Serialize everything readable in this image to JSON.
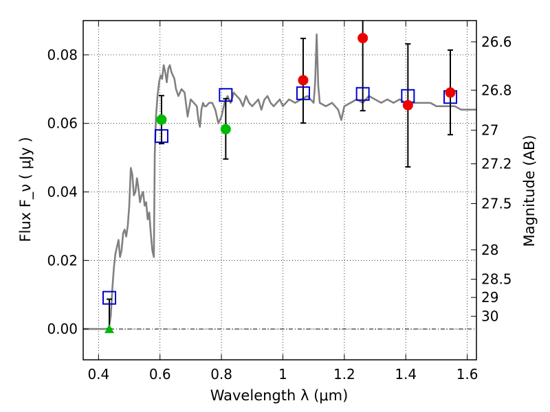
{
  "chart_data": {
    "type": "scatter",
    "title": "",
    "xlabel": "Wavelength  λ (μm)",
    "ylabel": "Flux  F_ν  ( μJy )",
    "y2label": "Magnitude (AB)",
    "xlim": [
      0.35,
      1.63
    ],
    "ylim": [
      -0.009,
      0.09
    ],
    "grid": true,
    "legend": "none",
    "x_ticks": [
      0.4,
      0.6,
      0.8,
      1.0,
      1.2,
      1.4,
      1.6
    ],
    "x_tick_labels": [
      "0.4",
      "0.6",
      "0.8",
      "1",
      "1.2",
      "1.4",
      "1.6"
    ],
    "y_ticks": [
      0.0,
      0.02,
      0.04,
      0.06,
      0.08
    ],
    "y_tick_labels": [
      "0.00",
      "0.02",
      "0.04",
      "0.06",
      "0.08"
    ],
    "mag_ticks": [
      {
        "label": "26.6",
        "flux": 0.0838
      },
      {
        "label": "26.8",
        "flux": 0.0697
      },
      {
        "label": "27",
        "flux": 0.058
      },
      {
        "label": "27.2",
        "flux": 0.0482
      },
      {
        "label": "27.5",
        "flux": 0.0366
      },
      {
        "label": "28",
        "flux": 0.0231
      },
      {
        "label": "28.5",
        "flux": 0.0145
      },
      {
        "label": "29",
        "flux": 0.0092
      },
      {
        "label": "30",
        "flux": 0.0037
      }
    ],
    "model_spectrum": {
      "color": "#808080",
      "x": [
        0.35,
        0.43,
        0.435,
        0.44,
        0.445,
        0.45,
        0.455,
        0.46,
        0.465,
        0.47,
        0.475,
        0.48,
        0.485,
        0.49,
        0.495,
        0.5,
        0.505,
        0.51,
        0.515,
        0.52,
        0.525,
        0.53,
        0.535,
        0.54,
        0.545,
        0.55,
        0.555,
        0.56,
        0.565,
        0.57,
        0.575,
        0.58,
        0.583,
        0.587,
        0.592,
        0.597,
        0.602,
        0.607,
        0.612,
        0.617,
        0.622,
        0.627,
        0.632,
        0.637,
        0.642,
        0.647,
        0.652,
        0.66,
        0.67,
        0.68,
        0.69,
        0.7,
        0.71,
        0.72,
        0.725,
        0.73,
        0.735,
        0.74,
        0.745,
        0.75,
        0.76,
        0.77,
        0.78,
        0.79,
        0.8,
        0.81,
        0.82,
        0.83,
        0.84,
        0.85,
        0.86,
        0.87,
        0.88,
        0.89,
        0.9,
        0.91,
        0.92,
        0.93,
        0.94,
        0.95,
        0.96,
        0.97,
        0.98,
        0.99,
        1.0,
        1.02,
        1.04,
        1.06,
        1.08,
        1.09,
        1.1,
        1.105,
        1.11,
        1.115,
        1.12,
        1.14,
        1.16,
        1.18,
        1.19,
        1.2,
        1.22,
        1.24,
        1.26,
        1.28,
        1.3,
        1.32,
        1.34,
        1.36,
        1.38,
        1.4,
        1.42,
        1.44,
        1.46,
        1.48,
        1.5,
        1.52,
        1.54,
        1.56,
        1.58,
        1.6,
        1.63
      ],
      "y": [
        0.0,
        0.0,
        0.001,
        0.004,
        0.012,
        0.018,
        0.022,
        0.024,
        0.026,
        0.021,
        0.023,
        0.028,
        0.029,
        0.027,
        0.03,
        0.036,
        0.047,
        0.045,
        0.039,
        0.04,
        0.044,
        0.041,
        0.037,
        0.039,
        0.04,
        0.036,
        0.037,
        0.032,
        0.034,
        0.028,
        0.023,
        0.021,
        0.051,
        0.062,
        0.068,
        0.072,
        0.074,
        0.073,
        0.077,
        0.075,
        0.072,
        0.076,
        0.077,
        0.075,
        0.074,
        0.073,
        0.07,
        0.068,
        0.07,
        0.069,
        0.062,
        0.067,
        0.066,
        0.065,
        0.061,
        0.059,
        0.064,
        0.066,
        0.065,
        0.065,
        0.066,
        0.066,
        0.064,
        0.06,
        0.062,
        0.066,
        0.068,
        0.066,
        0.069,
        0.068,
        0.067,
        0.065,
        0.068,
        0.066,
        0.065,
        0.066,
        0.067,
        0.064,
        0.067,
        0.068,
        0.066,
        0.065,
        0.066,
        0.067,
        0.065,
        0.067,
        0.066,
        0.067,
        0.068,
        0.067,
        0.066,
        0.072,
        0.086,
        0.071,
        0.066,
        0.065,
        0.066,
        0.064,
        0.061,
        0.065,
        0.066,
        0.067,
        0.066,
        0.068,
        0.067,
        0.066,
        0.067,
        0.066,
        0.067,
        0.066,
        0.066,
        0.066,
        0.066,
        0.066,
        0.065,
        0.065,
        0.065,
        0.065,
        0.064,
        0.064,
        0.064
      ]
    },
    "series": [
      {
        "marker": "open-square",
        "color": "#0000cc",
        "points": [
          {
            "x": 0.435,
            "y": 0.0091
          },
          {
            "x": 0.605,
            "y": 0.0563
          },
          {
            "x": 0.814,
            "y": 0.0683
          },
          {
            "x": 1.066,
            "y": 0.0688
          },
          {
            "x": 1.26,
            "y": 0.0686
          },
          {
            "x": 1.407,
            "y": 0.068
          },
          {
            "x": 1.545,
            "y": 0.0677
          }
        ]
      },
      {
        "marker": "filled-circle",
        "color": "#00bb00",
        "points": [
          {
            "x": 0.605,
            "y": 0.0611,
            "yerr_low": 0.0541,
            "yerr_high": 0.0681
          },
          {
            "x": 0.814,
            "y": 0.0583,
            "yerr_low": 0.0496,
            "yerr_high": 0.0672
          }
        ]
      },
      {
        "marker": "filled-circle",
        "color": "#ee0000",
        "points": [
          {
            "x": 1.066,
            "y": 0.0726,
            "yerr_low": 0.0601,
            "yerr_high": 0.0848
          },
          {
            "x": 1.26,
            "y": 0.0849,
            "yerr_low": 0.0637,
            "yerr_high": 0.092
          },
          {
            "x": 1.407,
            "y": 0.0653,
            "yerr_low": 0.0473,
            "yerr_high": 0.0832
          },
          {
            "x": 1.545,
            "y": 0.069,
            "yerr_low": 0.0567,
            "yerr_high": 0.0814
          }
        ]
      },
      {
        "marker": "filled-triangle",
        "color": "#00bb00",
        "points": [
          {
            "x": 0.435,
            "y": 0.0,
            "yerr_low": 0.0,
            "yerr_high": 0.0087
          }
        ]
      }
    ]
  }
}
